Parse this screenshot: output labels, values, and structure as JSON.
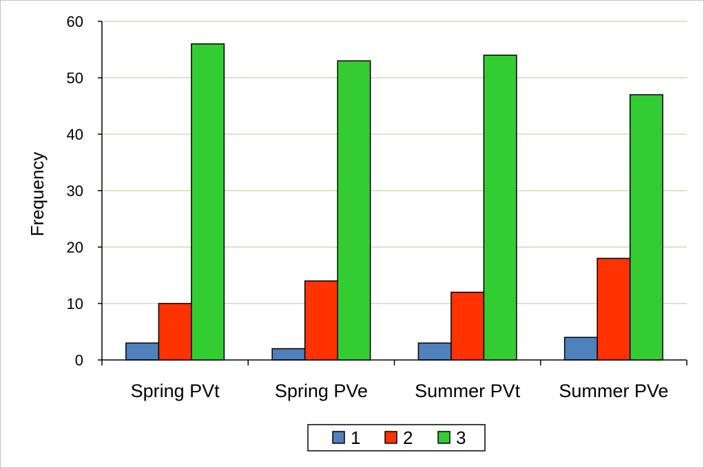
{
  "chart_data": {
    "type": "bar",
    "title": "",
    "xlabel": "",
    "ylabel": "Frequency",
    "ylim": [
      0,
      60
    ],
    "yticks": [
      "0",
      "10",
      "20",
      "30",
      "40",
      "50",
      "60"
    ],
    "grid": true,
    "legend_position": "bottom",
    "categories": [
      "Spring PVt",
      "Spring PVe",
      "Summer PVt",
      "Summer PVe"
    ],
    "series": [
      {
        "name": "1",
        "color": "#4f81bd",
        "values": [
          3,
          2,
          3,
          4
        ]
      },
      {
        "name": "2",
        "color": "#ff3300",
        "values": [
          10,
          14,
          12,
          18
        ]
      },
      {
        "name": "3",
        "color": "#33cc33",
        "values": [
          56,
          53,
          54,
          47
        ]
      }
    ],
    "colors": {
      "gridline": "#d9d5b4",
      "bar_outline": "#000000",
      "axis": "#000000"
    }
  }
}
